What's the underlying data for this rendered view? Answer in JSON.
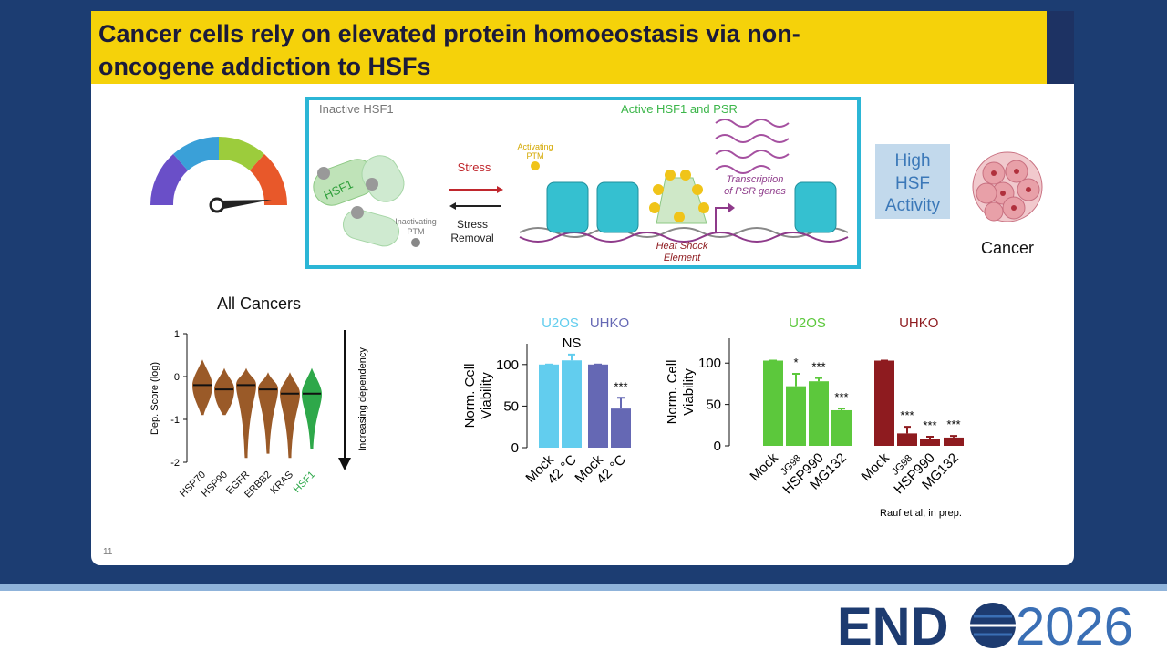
{
  "slide": {
    "title": [
      "Cancer cells rely on elevated protein homoeostasis via non-",
      "oncogene addiction to HSFs"
    ],
    "number": "11",
    "logo": {
      "left": "END",
      "right": "2026"
    }
  },
  "diagram": {
    "inactive": "Inactive HSF1",
    "active": "Active HSF1 and PSR",
    "hsf1": "HSF1",
    "inactivating_ptm": [
      "Inactivating",
      "PTM"
    ],
    "stress": "Stress",
    "stress_removal": [
      "Stress",
      "Removal"
    ],
    "activating_ptm": [
      "Activating",
      "PTM"
    ],
    "transcription": [
      "Transcription",
      "of PSR genes"
    ],
    "hse": [
      "Heat Shock",
      "Element"
    ],
    "high_activity": [
      "High",
      "HSF",
      "Activity"
    ],
    "cancer": "Cancer"
  },
  "chart_data": [
    {
      "type": "swarm",
      "title": "All Cancers",
      "y_label": "Dep. Score (log)",
      "annotation": "Increasing dependency",
      "categories": [
        "HSP70",
        "HSP90",
        "EGFR",
        "ERBB2",
        "KRAS",
        "HSF1"
      ],
      "values": [
        -0.2,
        -0.3,
        -0.2,
        -0.3,
        -0.4,
        -0.4
      ],
      "mins": [
        -0.9,
        -0.9,
        -1.9,
        -1.8,
        -1.9,
        -1.7
      ],
      "maxs": [
        0.4,
        0.2,
        0.2,
        0.1,
        0.1,
        0.2
      ],
      "colors": [
        "#9a5a28",
        "#9a5a28",
        "#9a5a28",
        "#9a5a28",
        "#9a5a28",
        "#2ea84a"
      ],
      "ylim": [
        -2,
        1
      ],
      "yticks": [
        1,
        0,
        -1,
        -2
      ]
    },
    {
      "type": "bar",
      "y_label": [
        "Norm. Cell",
        "Viability"
      ],
      "categories": [
        "Mock",
        "42 °C",
        "Mock",
        "42 °C"
      ],
      "series": [
        {
          "name": "U2OS",
          "color": "#62cdee",
          "values": [
            100,
            105,
            null,
            null
          ],
          "errors": [
            0,
            7,
            null,
            null
          ],
          "significance": [
            null,
            "NS",
            null,
            null
          ]
        },
        {
          "name": "UHKO",
          "color": "#6568b4",
          "values": [
            null,
            null,
            100,
            47
          ],
          "errors": [
            null,
            null,
            0,
            13
          ],
          "significance": [
            null,
            null,
            null,
            "***"
          ]
        }
      ],
      "ylim": [
        0,
        125
      ],
      "yticks": [
        0,
        50,
        100
      ]
    },
    {
      "type": "bar",
      "y_label": [
        "Norm. Cell",
        "Viability"
      ],
      "source": "Rauf et al, in prep.",
      "categories": [
        "Mock",
        "JG98",
        "HSP990",
        "MG132",
        "Mock",
        "JG98",
        "HSP990",
        "MG132"
      ],
      "series": [
        {
          "name": "U2OS",
          "color": "#5cc83c",
          "values": [
            103,
            72,
            78,
            43,
            null,
            null,
            null,
            null
          ],
          "errors": [
            0,
            15,
            4,
            2,
            null,
            null,
            null,
            null
          ],
          "significance": [
            null,
            "*",
            "***",
            "***",
            null,
            null,
            null,
            null
          ]
        },
        {
          "name": "UHKO",
          "color": "#8e1b1f",
          "values": [
            null,
            null,
            null,
            null,
            103,
            15,
            8,
            10
          ],
          "errors": [
            null,
            null,
            null,
            null,
            0,
            8,
            3,
            2
          ],
          "significance": [
            null,
            null,
            null,
            null,
            null,
            "***",
            "***",
            "***"
          ]
        }
      ],
      "ylim": [
        0,
        130
      ],
      "yticks": [
        0,
        50,
        100
      ]
    }
  ]
}
